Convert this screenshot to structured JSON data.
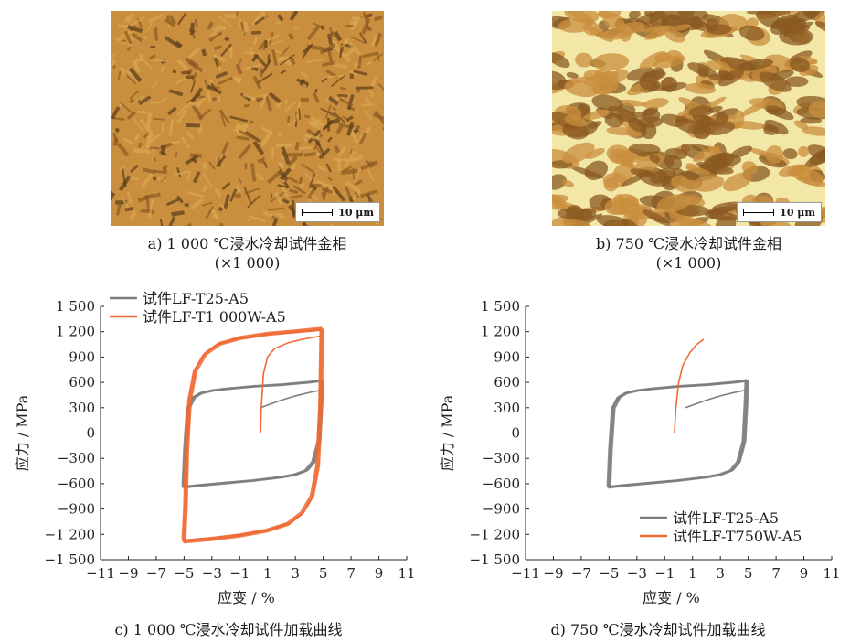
{
  "panel_a": {
    "scale_label": "10 μm",
    "caption_line1": "a)  1 000 ℃浸水冷却试件金相",
    "caption_line2": "(×1 000)"
  },
  "panel_b": {
    "scale_label": "10 μm",
    "caption_line1": "b)  750 ℃浸水冷却试件金相",
    "caption_line2": "(×1 000)"
  },
  "panel_c": {
    "caption": "c)  1 000 ℃浸水冷却试件加载曲线"
  },
  "panel_d": {
    "caption": "d)  750 ℃浸水冷却试件加载曲线"
  },
  "colors": {
    "gray_series": "#7d7d7d",
    "orange_series": "#f06a35",
    "micro_dark": "#8a5a22",
    "micro_mid": "#c98f3e",
    "micro_light": "#f3e7a8"
  },
  "chart_data": [
    {
      "id": "c",
      "type": "line",
      "title": "",
      "xlabel": "应变 / %",
      "ylabel": "应力 / MPa",
      "xlim": [
        -11,
        11
      ],
      "ylim": [
        -1500,
        1500
      ],
      "xticks": [
        -11,
        -9,
        -7,
        -5,
        -3,
        -1,
        1,
        3,
        5,
        7,
        9,
        11
      ],
      "xtick_labels": [
        "−11",
        "−9",
        "−7",
        "−5",
        "−3",
        "−1",
        "1",
        "3",
        "5",
        "7",
        "9",
        "11"
      ],
      "yticks": [
        1500,
        1200,
        900,
        600,
        300,
        0,
        -300,
        -600,
        -900,
        -1200,
        -1500
      ],
      "ytick_labels": [
        "1 500",
        "1 200",
        "900",
        "600",
        "300",
        "0",
        "−300",
        "−600",
        "−900",
        "−1 200",
        "−1 500"
      ],
      "legend_position": "top-left",
      "series": [
        {
          "name": "试件LF-T25-A5",
          "color": "#7d7d7d",
          "initial": [
            [
              0.5,
              300
            ],
            [
              1,
              330
            ],
            [
              2,
              390
            ],
            [
              3,
              440
            ],
            [
              4,
              480
            ],
            [
              4.9,
              510
            ]
          ],
          "loop": [
            [
              4.9,
              630
            ],
            [
              4,
              610
            ],
            [
              2,
              580
            ],
            [
              0,
              560
            ],
            [
              -2,
              530
            ],
            [
              -3,
              510
            ],
            [
              -3.8,
              480
            ],
            [
              -4.3,
              430
            ],
            [
              -4.7,
              300
            ],
            [
              -4.9,
              -200
            ],
            [
              -5,
              -600
            ],
            [
              -5,
              -650
            ],
            [
              -4,
              -630
            ],
            [
              -2,
              -600
            ],
            [
              0,
              -570
            ],
            [
              2,
              -530
            ],
            [
              3,
              -500
            ],
            [
              3.8,
              -450
            ],
            [
              4.3,
              -350
            ],
            [
              4.7,
              -100
            ],
            [
              4.85,
              400
            ],
            [
              4.9,
              630
            ]
          ]
        },
        {
          "name": "试件LF-T1 000W-A5",
          "color": "#f06a35",
          "initial": [
            [
              0.5,
              0
            ],
            [
              0.55,
              300
            ],
            [
              0.7,
              700
            ],
            [
              1,
              900
            ],
            [
              1.5,
              1000
            ],
            [
              2.5,
              1070
            ],
            [
              3.5,
              1110
            ],
            [
              4.9,
              1150
            ]
          ],
          "loop": [
            [
              4.9,
              1250
            ],
            [
              3,
              1220
            ],
            [
              1,
              1190
            ],
            [
              -1,
              1140
            ],
            [
              -2.5,
              1070
            ],
            [
              -3.5,
              950
            ],
            [
              -4.2,
              750
            ],
            [
              -4.6,
              400
            ],
            [
              -4.8,
              -200
            ],
            [
              -4.9,
              -900
            ],
            [
              -5,
              -1250
            ],
            [
              -5,
              -1300
            ],
            [
              -3,
              -1270
            ],
            [
              -1,
              -1230
            ],
            [
              1,
              -1170
            ],
            [
              2.5,
              -1090
            ],
            [
              3.5,
              -960
            ],
            [
              4.2,
              -760
            ],
            [
              4.6,
              -400
            ],
            [
              4.8,
              300
            ],
            [
              4.9,
              1250
            ]
          ]
        }
      ]
    },
    {
      "id": "d",
      "type": "line",
      "title": "",
      "xlabel": "应变 / %",
      "ylabel": "应力 / MPa",
      "xlim": [
        -11,
        11
      ],
      "ylim": [
        -1500,
        1500
      ],
      "xticks": [
        -11,
        -9,
        -7,
        -5,
        -3,
        -1,
        1,
        3,
        5,
        7,
        9,
        11
      ],
      "xtick_labels": [
        "−11",
        "−9",
        "−7",
        "−5",
        "−3",
        "−1",
        "1",
        "3",
        "5",
        "7",
        "9",
        "11"
      ],
      "yticks": [
        1500,
        1200,
        900,
        600,
        300,
        0,
        -300,
        -600,
        -900,
        -1200,
        -1500
      ],
      "ytick_labels": [
        "1 500",
        "1 200",
        "900",
        "600",
        "300",
        "0",
        "−300",
        "−600",
        "−900",
        "−1 200",
        "−1 500"
      ],
      "legend_position": "bottom-right",
      "series": [
        {
          "name": "试件LF-T25-A5",
          "color": "#7d7d7d",
          "initial": [
            [
              0.5,
              300
            ],
            [
              1,
              330
            ],
            [
              2,
              390
            ],
            [
              3,
              440
            ],
            [
              4,
              480
            ],
            [
              4.9,
              510
            ]
          ],
          "loop": [
            [
              4.9,
              630
            ],
            [
              4,
              610
            ],
            [
              2,
              580
            ],
            [
              0,
              560
            ],
            [
              -2,
              530
            ],
            [
              -3,
              510
            ],
            [
              -3.8,
              480
            ],
            [
              -4.3,
              430
            ],
            [
              -4.7,
              300
            ],
            [
              -4.9,
              -200
            ],
            [
              -5,
              -600
            ],
            [
              -5,
              -650
            ],
            [
              -4,
              -630
            ],
            [
              -2,
              -600
            ],
            [
              0,
              -570
            ],
            [
              2,
              -530
            ],
            [
              3,
              -500
            ],
            [
              3.8,
              -450
            ],
            [
              4.3,
              -350
            ],
            [
              4.7,
              -100
            ],
            [
              4.85,
              400
            ],
            [
              4.9,
              630
            ]
          ]
        },
        {
          "name": "试件LF-T750W-A5",
          "color": "#f06a35",
          "initial": [
            [
              -0.3,
              0
            ],
            [
              -0.2,
              300
            ],
            [
              0,
              600
            ],
            [
              0.3,
              800
            ],
            [
              0.8,
              950
            ],
            [
              1.3,
              1050
            ],
            [
              1.8,
              1110
            ]
          ],
          "loop": []
        }
      ]
    }
  ]
}
